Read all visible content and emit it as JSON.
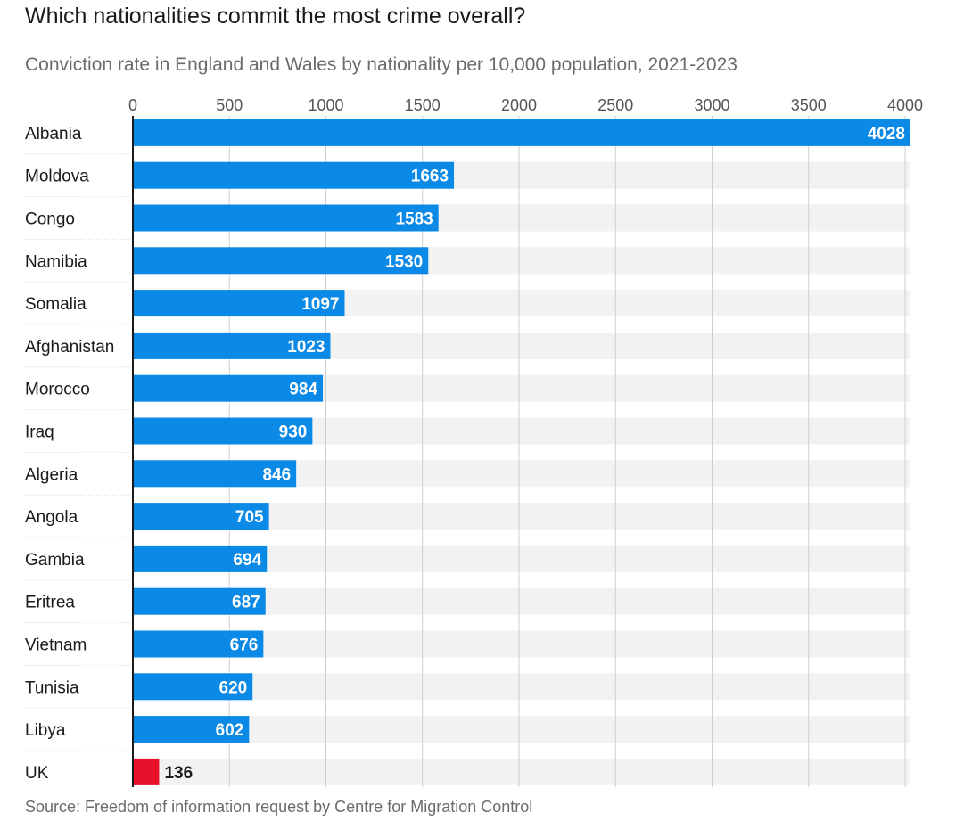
{
  "title": "Which nationalities commit the most crime overall?",
  "subtitle": "Conviction rate in England and Wales by nationality per 10,000 population, 2021-2023",
  "source": "Source: Freedom of information request by Centre for Migration Control",
  "colors": {
    "bar": "#0a89e6",
    "highlight": "#e8102a",
    "band": "#f2f2f2",
    "grid": "#cfcfcf"
  },
  "chart_data": {
    "type": "bar",
    "orientation": "horizontal",
    "title": "Which nationalities commit the most crime overall?",
    "xlabel": "",
    "ylabel": "",
    "xlim": [
      0,
      4000
    ],
    "ticks": [
      0,
      500,
      1000,
      1500,
      2000,
      2500,
      3000,
      3500,
      4000
    ],
    "categories": [
      "Albania",
      "Moldova",
      "Congo",
      "Namibia",
      "Somalia",
      "Afghanistan",
      "Morocco",
      "Iraq",
      "Algeria",
      "Angola",
      "Gambia",
      "Eritrea",
      "Vietnam",
      "Tunisia",
      "Libya",
      "UK"
    ],
    "values": [
      4028,
      1663,
      1583,
      1530,
      1097,
      1023,
      984,
      930,
      846,
      705,
      694,
      687,
      676,
      620,
      602,
      136
    ],
    "highlight": "UK"
  }
}
